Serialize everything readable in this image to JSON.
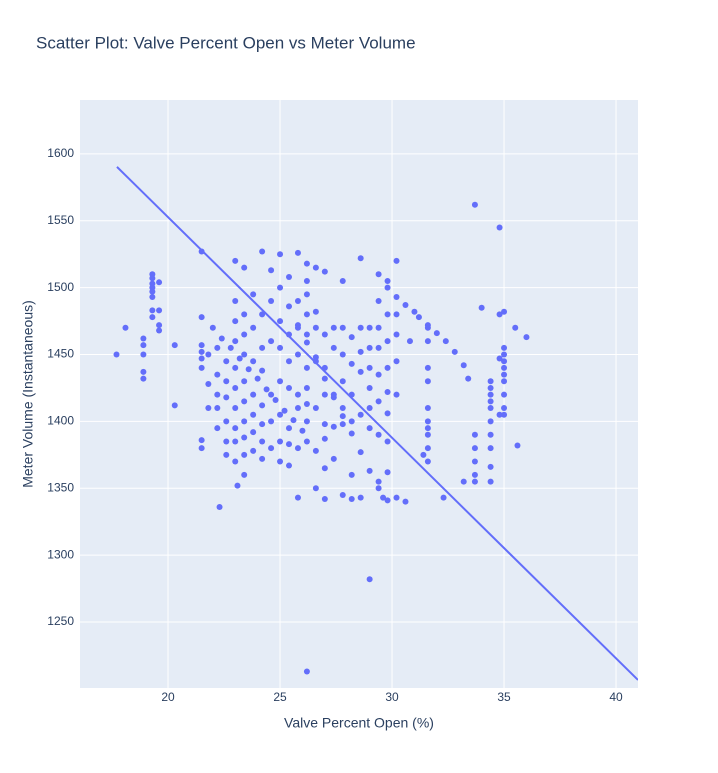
{
  "chart_data": {
    "type": "scatter",
    "title": "Scatter Plot: Valve Percent Open vs Meter Volume",
    "x_label": "Valve Percent Open (%)",
    "y_label": "Meter Volume (Instantaneous)",
    "xlim": [
      16.07,
      40.98
    ],
    "ylim": [
      1200.7,
      1640.3
    ],
    "xticks": [
      20,
      25,
      30,
      35,
      40
    ],
    "yticks": [
      1250,
      1300,
      1350,
      1400,
      1450,
      1500,
      1550,
      1600
    ],
    "grid": true,
    "series": [
      {
        "mode": "markers",
        "color": "#636efa",
        "x": [
          17.7,
          18.1,
          18.9,
          18.9,
          18.9,
          18.9,
          18.9,
          19.3,
          19.3,
          19.3,
          19.3,
          19.3,
          19.3,
          19.3,
          19.3,
          19.6,
          19.6,
          19.6,
          19.6,
          20.3,
          20.3,
          21.5,
          21.5,
          21.5,
          21.5,
          21.5,
          21.5,
          21.5,
          21.5,
          22.0,
          22.4,
          22.8,
          23.2,
          23.6,
          24.0,
          24.4,
          24.8,
          25.2,
          25.6,
          26.0,
          24.2,
          24.6,
          25.0,
          25.4,
          25.8,
          26.2,
          26.6,
          27.0,
          27.4,
          27.8,
          28.2,
          28.6,
          29.0,
          29.4,
          29.6,
          29.8,
          30.2,
          30.6,
          31.0,
          31.2,
          31.6,
          32.0,
          32.4,
          32.8,
          33.2,
          33.4,
          23.0,
          23.0,
          23.0,
          23.0,
          23.0,
          23.0,
          23.0,
          23.0,
          23.0,
          23.0,
          23.4,
          23.4,
          23.4,
          23.4,
          23.4,
          23.4,
          23.4,
          23.4,
          23.4,
          23.4,
          23.8,
          23.8,
          23.8,
          23.8,
          23.8,
          23.8,
          23.8,
          24.2,
          24.2,
          24.2,
          24.2,
          24.2,
          24.2,
          24.2,
          22.6,
          22.6,
          22.6,
          22.6,
          22.6,
          22.6,
          22.2,
          22.2,
          22.2,
          22.2,
          22.2,
          21.8,
          21.8,
          21.8,
          24.6,
          24.6,
          24.6,
          24.6,
          24.6,
          25.0,
          25.0,
          25.0,
          25.0,
          25.0,
          25.0,
          25.0,
          25.4,
          25.4,
          25.4,
          25.4,
          25.4,
          25.4,
          25.4,
          25.8,
          25.8,
          25.8,
          25.8,
          25.8,
          25.8,
          25.8,
          25.8,
          26.2,
          26.2,
          26.2,
          26.2,
          26.2,
          26.2,
          26.2,
          26.2,
          26.2,
          26.2,
          26.2,
          26.6,
          26.6,
          26.6,
          26.6,
          26.6,
          26.6,
          26.6,
          27.0,
          27.0,
          27.0,
          27.0,
          27.0,
          27.0,
          27.0,
          27.0,
          27.4,
          27.4,
          27.4,
          27.4,
          27.4,
          27.8,
          27.8,
          27.8,
          27.8,
          27.8,
          27.8,
          27.8,
          28.2,
          28.2,
          28.2,
          28.2,
          28.2,
          28.2,
          28.6,
          28.6,
          28.6,
          28.6,
          28.6,
          28.6,
          29.0,
          29.0,
          29.0,
          29.0,
          29.0,
          29.0,
          29.0,
          29.4,
          29.4,
          29.4,
          29.4,
          29.4,
          29.4,
          29.4,
          29.4,
          29.8,
          29.8,
          29.8,
          29.8,
          29.8,
          29.8,
          29.8,
          29.8,
          29.8,
          30.2,
          30.2,
          30.2,
          30.2,
          30.2,
          30.2,
          30.6,
          31.6,
          31.6,
          31.6,
          31.6,
          31.6,
          31.6,
          31.6,
          31.6,
          31.6,
          31.6,
          33.7,
          33.7,
          33.7,
          33.7,
          33.7,
          33.7,
          34.4,
          34.4,
          34.4,
          34.4,
          34.4,
          34.4,
          34.4,
          34.4,
          34.4,
          34.4,
          34.8,
          34.8,
          34.8,
          34.8,
          35.0,
          35.0,
          35.0,
          35.0,
          35.0,
          35.0,
          35.0,
          35.0,
          35.0,
          35.0,
          35.5,
          35.6,
          36.0,
          33.2,
          32.3,
          34.0,
          31.4,
          30.8,
          22.3,
          23.1
        ],
        "values": [
          1450,
          1470,
          1462,
          1457,
          1450,
          1437,
          1432,
          1510,
          1507,
          1503,
          1500,
          1497,
          1493,
          1483,
          1478,
          1504,
          1483,
          1472,
          1468,
          1457,
          1412,
          1527,
          1478,
          1457,
          1452,
          1447,
          1440,
          1386,
          1380,
          1470,
          1462,
          1455,
          1447,
          1439,
          1432,
          1424,
          1416,
          1408,
          1401,
          1393,
          1527,
          1513,
          1500,
          1486,
          1472,
          1459,
          1445,
          1432,
          1418,
          1404,
          1391,
          1377,
          1363,
          1350,
          1343,
          1500,
          1493,
          1487,
          1482,
          1478,
          1472,
          1466,
          1460,
          1452,
          1442,
          1432,
          1520,
          1490,
          1475,
          1460,
          1440,
          1425,
          1410,
          1395,
          1385,
          1370,
          1515,
          1480,
          1465,
          1450,
          1430,
          1415,
          1400,
          1388,
          1375,
          1360,
          1495,
          1470,
          1445,
          1420,
          1405,
          1392,
          1378,
          1480,
          1455,
          1438,
          1412,
          1398,
          1385,
          1372,
          1445,
          1430,
          1418,
          1400,
          1385,
          1375,
          1455,
          1435,
          1420,
          1410,
          1395,
          1450,
          1428,
          1410,
          1490,
          1460,
          1420,
          1400,
          1380,
          1525,
          1475,
          1455,
          1430,
          1405,
          1385,
          1370,
          1508,
          1465,
          1445,
          1425,
          1395,
          1383,
          1367,
          1526,
          1490,
          1470,
          1450,
          1420,
          1410,
          1380,
          1343,
          1518,
          1505,
          1495,
          1480,
          1465,
          1440,
          1425,
          1413,
          1400,
          1385,
          1213,
          1515,
          1482,
          1470,
          1448,
          1410,
          1378,
          1350,
          1512,
          1465,
          1440,
          1420,
          1398,
          1387,
          1365,
          1342,
          1470,
          1455,
          1420,
          1396,
          1372,
          1505,
          1470,
          1450,
          1430,
          1410,
          1398,
          1345,
          1463,
          1443,
          1420,
          1400,
          1360,
          1342,
          1522,
          1470,
          1452,
          1437,
          1405,
          1343,
          1470,
          1455,
          1440,
          1425,
          1410,
          1395,
          1282,
          1510,
          1490,
          1470,
          1455,
          1435,
          1415,
          1390,
          1355,
          1505,
          1480,
          1460,
          1440,
          1422,
          1406,
          1385,
          1362,
          1341,
          1520,
          1480,
          1465,
          1445,
          1420,
          1343,
          1340,
          1470,
          1460,
          1440,
          1430,
          1410,
          1400,
          1395,
          1390,
          1380,
          1370,
          1562,
          1390,
          1380,
          1370,
          1360,
          1355,
          1430,
          1425,
          1420,
          1415,
          1410,
          1400,
          1390,
          1380,
          1366,
          1355,
          1545,
          1480,
          1447,
          1405,
          1482,
          1455,
          1450,
          1445,
          1440,
          1435,
          1430,
          1420,
          1410,
          1405,
          1470,
          1382,
          1463,
          1355,
          1343,
          1485,
          1375,
          1460,
          1336,
          1352
        ]
      },
      {
        "mode": "lines",
        "color": "#636efa",
        "x": [
          17.72,
          40.98
        ],
        "values": [
          1590.3,
          1206.7
        ]
      }
    ]
  }
}
